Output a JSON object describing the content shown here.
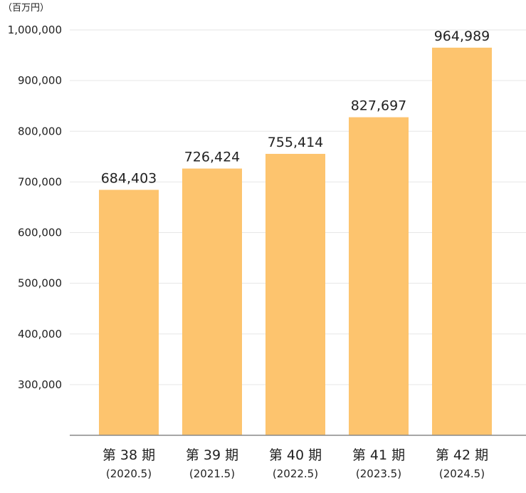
{
  "chart_data": {
    "type": "bar",
    "unit": "（百万円）",
    "categories": [
      "第 38 期",
      "第 39 期",
      "第 40 期",
      "第 41 期",
      "第 42 期"
    ],
    "category_sublabels": [
      "(2020.5)",
      "(2021.5)",
      "(2022.5)",
      "(2023.5)",
      "(2024.5)"
    ],
    "values": [
      684403,
      726424,
      755414,
      827697,
      964989
    ],
    "value_labels": [
      "684,403",
      "726,424",
      "755,414",
      "827,697",
      "964,989"
    ],
    "y_ticks": [
      300000,
      400000,
      500000,
      600000,
      700000,
      800000,
      900000,
      1000000
    ],
    "y_tick_labels": [
      "300,000",
      "400,000",
      "500,000",
      "600,000",
      "700,000",
      "800,000",
      "900,000",
      "1,000,000"
    ],
    "ylim": [
      200000,
      1000000
    ],
    "grid": true,
    "bar_color": "#fdc46e"
  }
}
